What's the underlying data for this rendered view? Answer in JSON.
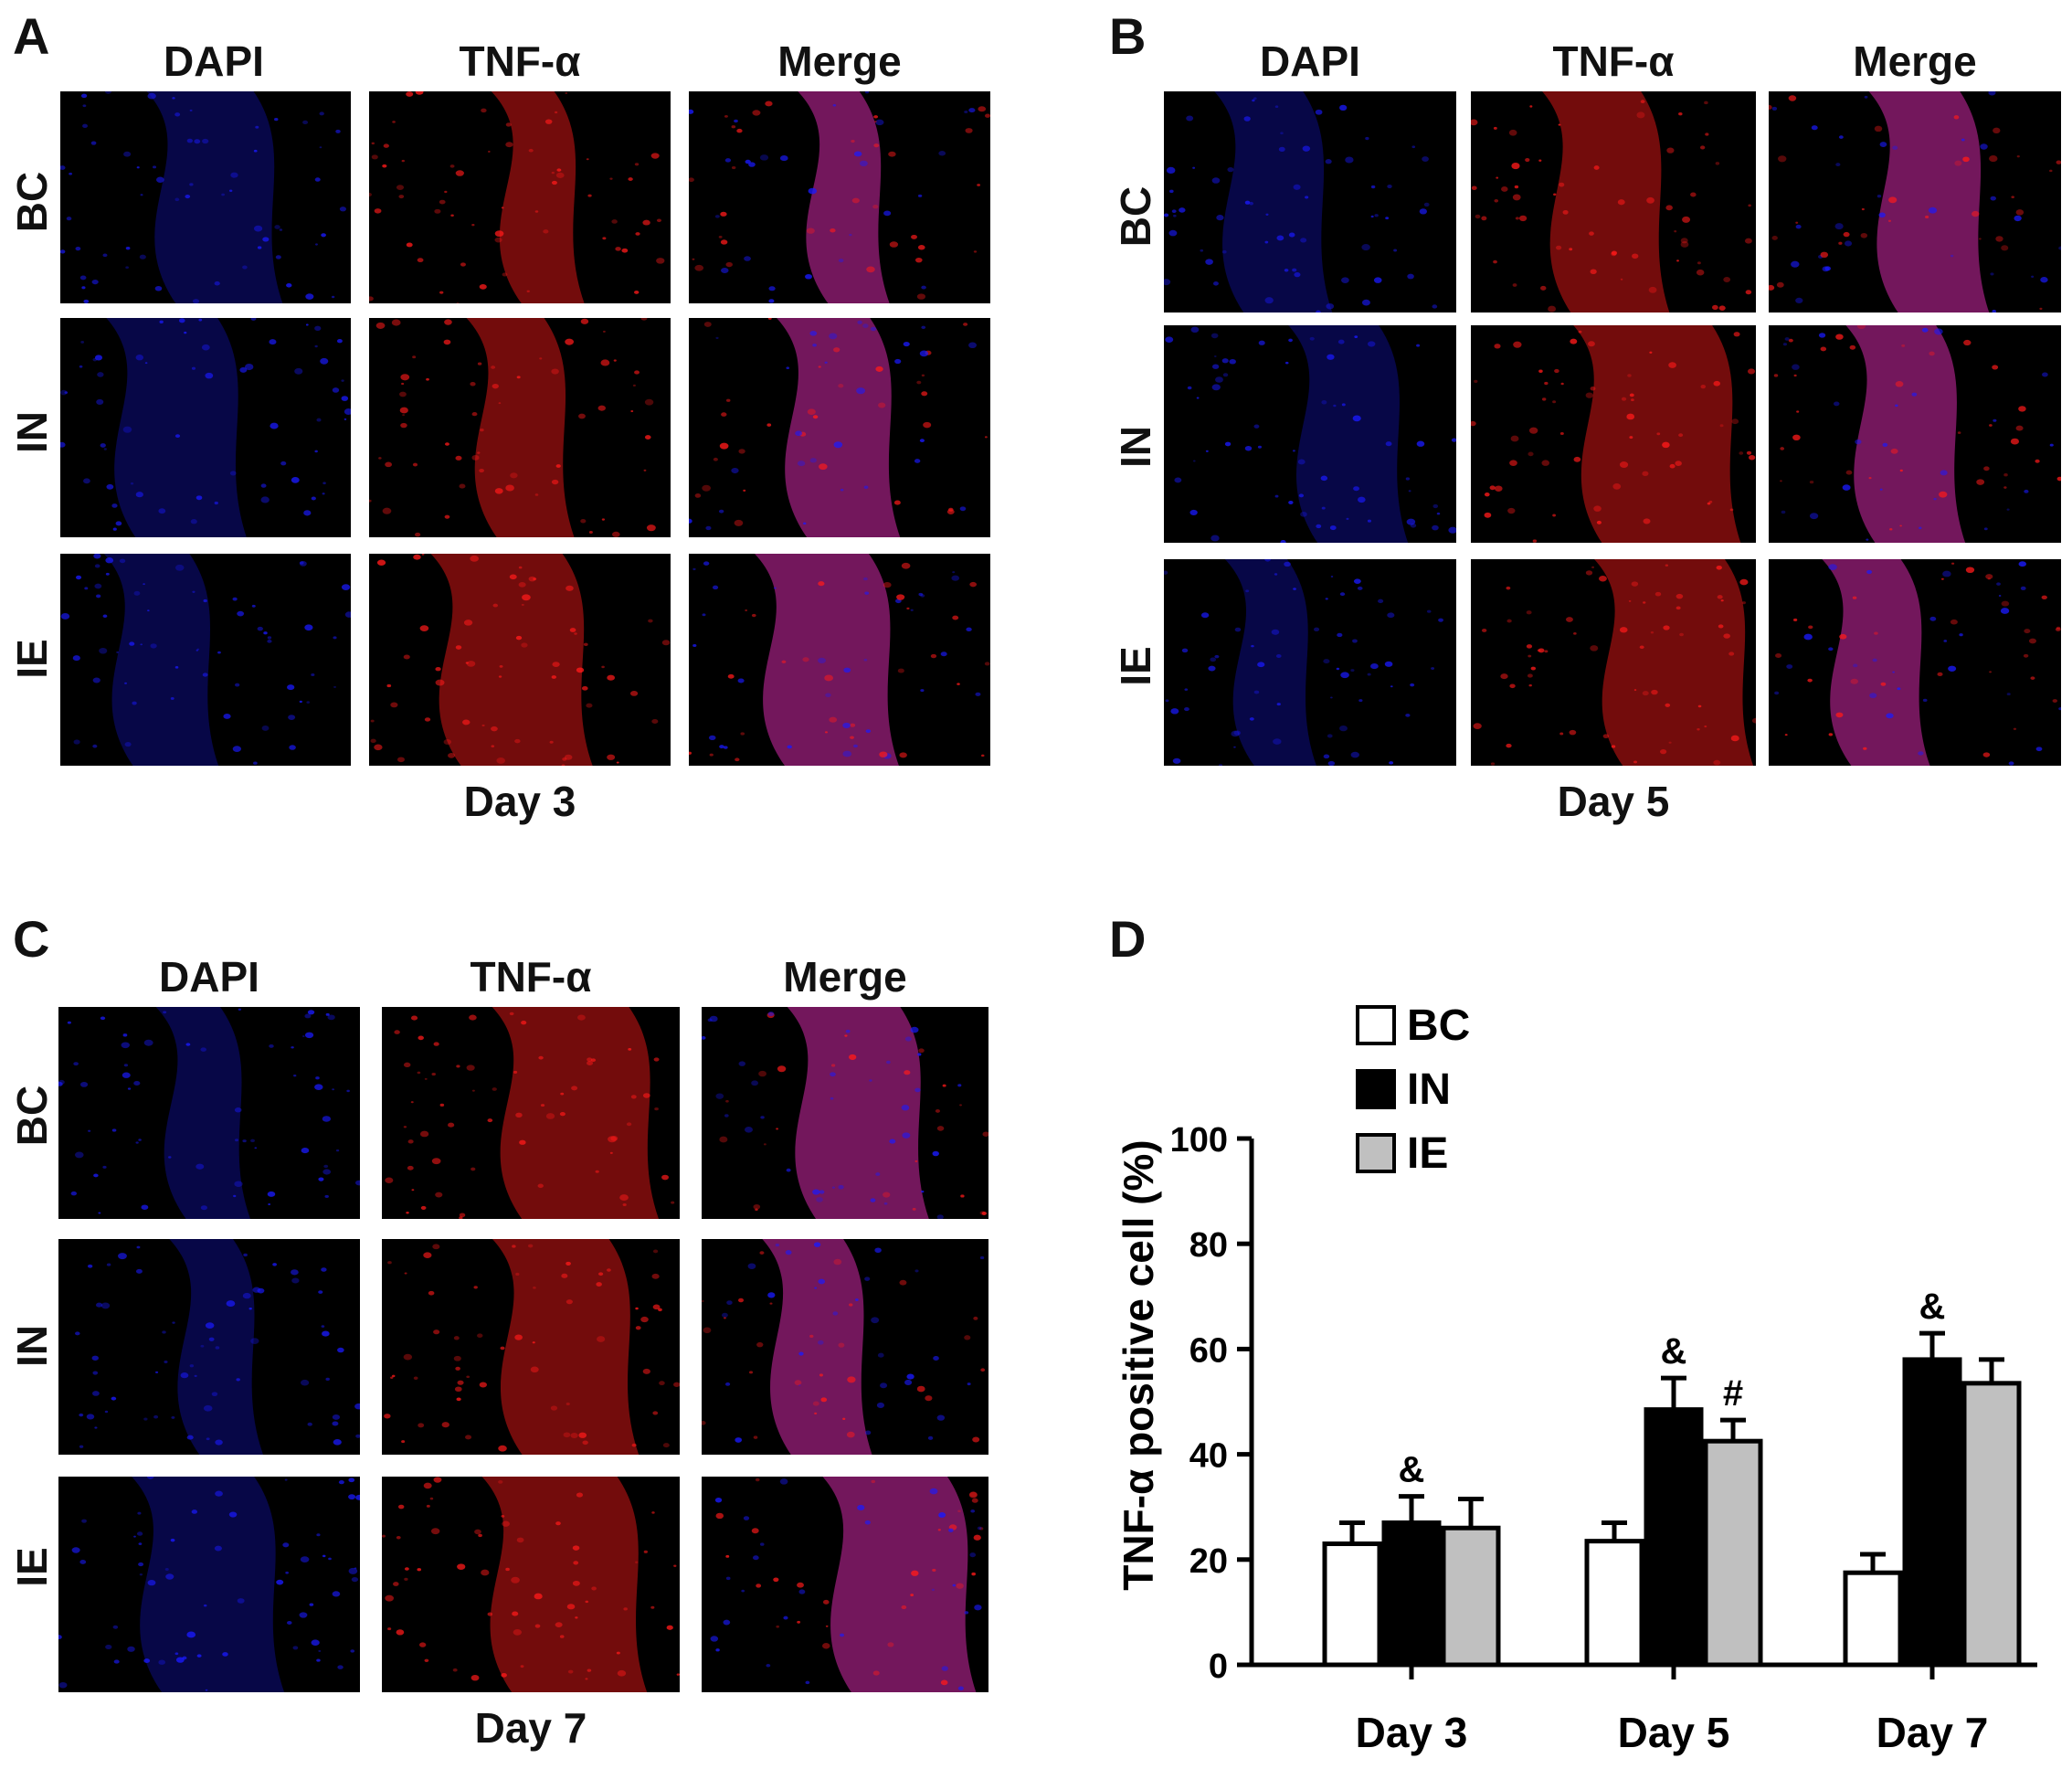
{
  "panels": [
    {
      "letter": "A",
      "columns": [
        "DAPI",
        "TNF-α",
        "Merge"
      ],
      "rows": [
        "BC",
        "IN",
        "IE"
      ],
      "day": "Day 3"
    },
    {
      "letter": "B",
      "columns": [
        "DAPI",
        "TNF-α",
        "Merge"
      ],
      "rows": [
        "BC",
        "IN",
        "IE"
      ],
      "day": "Day 5"
    },
    {
      "letter": "C",
      "columns": [
        "DAPI",
        "TNF-α",
        "Merge"
      ],
      "rows": [
        "BC",
        "IN",
        "IE"
      ],
      "day": "Day 7"
    }
  ],
  "chart_panel_letter": "D",
  "chart_data": {
    "type": "bar",
    "categories": [
      "Day 3",
      "Day 5",
      "Day 7"
    ],
    "series": [
      {
        "name": "BC",
        "values": [
          23,
          23.5,
          17.5
        ],
        "errors": [
          4,
          3.5,
          3.5
        ],
        "color": "#ffffff"
      },
      {
        "name": "IN",
        "values": [
          27,
          48.5,
          58
        ],
        "errors": [
          5,
          6,
          5
        ],
        "color": "#000000"
      },
      {
        "name": "IE",
        "values": [
          26,
          42.5,
          53.5
        ],
        "errors": [
          5.5,
          4,
          4.5
        ],
        "color": "#c0c0c0"
      }
    ],
    "annotations": [
      {
        "series": "IN",
        "category": "Day 3",
        "text": "&"
      },
      {
        "series": "IN",
        "category": "Day 5",
        "text": "&"
      },
      {
        "series": "IE",
        "category": "Day 5",
        "text": "#"
      },
      {
        "series": "IN",
        "category": "Day 7",
        "text": "&"
      }
    ],
    "ylabel": "TNF-α positive cell (%)",
    "xlabel": "",
    "ylim": [
      0,
      100
    ],
    "yticks": [
      0,
      20,
      40,
      60,
      80,
      100
    ],
    "grid": false,
    "legend_position": "top-left"
  },
  "colors": {
    "dapi": "#1a1aff",
    "tnf": "#ff1a1a",
    "merge": "#ff33cc",
    "background": "#000000"
  }
}
